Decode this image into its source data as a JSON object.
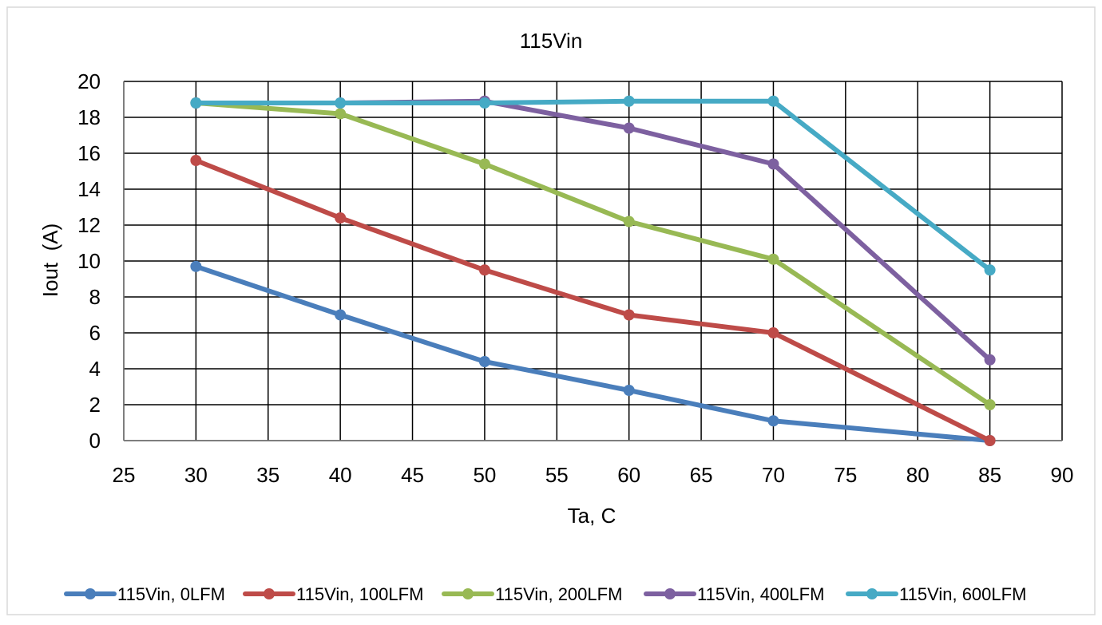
{
  "chart_data": {
    "type": "line",
    "title": "115Vin",
    "xlabel": "Ta, C",
    "ylabel": "Iout  (A)",
    "xlim": [
      25,
      90
    ],
    "ylim": [
      0,
      20
    ],
    "x_ticks": [
      25,
      30,
      35,
      40,
      45,
      50,
      55,
      60,
      65,
      70,
      75,
      80,
      85,
      90
    ],
    "y_ticks": [
      0,
      2,
      4,
      6,
      8,
      10,
      12,
      14,
      16,
      18,
      20
    ],
    "grid": true,
    "legend_position": "bottom",
    "series": [
      {
        "name": "115Vin, 0LFM",
        "color": "#4a7ebb",
        "x": [
          30,
          40,
          50,
          60,
          70,
          85
        ],
        "y": [
          9.7,
          7.0,
          4.4,
          2.8,
          1.1,
          0.0
        ]
      },
      {
        "name": "115Vin, 100LFM",
        "color": "#be4b48",
        "x": [
          30,
          40,
          50,
          60,
          70,
          85
        ],
        "y": [
          15.6,
          12.4,
          9.5,
          7.0,
          6.0,
          0.0
        ]
      },
      {
        "name": "115Vin, 200LFM",
        "color": "#98b954",
        "x": [
          30,
          40,
          50,
          60,
          70,
          85
        ],
        "y": [
          18.8,
          18.2,
          15.4,
          12.2,
          10.1,
          2.0
        ]
      },
      {
        "name": "115Vin, 400LFM",
        "color": "#7d60a0",
        "x": [
          30,
          40,
          50,
          60,
          70,
          85
        ],
        "y": [
          18.8,
          18.8,
          18.9,
          17.4,
          15.4,
          4.5
        ]
      },
      {
        "name": "115Vin, 600LFM",
        "color": "#46aac5",
        "x": [
          30,
          40,
          50,
          60,
          70,
          85
        ],
        "y": [
          18.8,
          18.8,
          18.8,
          18.9,
          18.9,
          9.5
        ]
      }
    ]
  }
}
